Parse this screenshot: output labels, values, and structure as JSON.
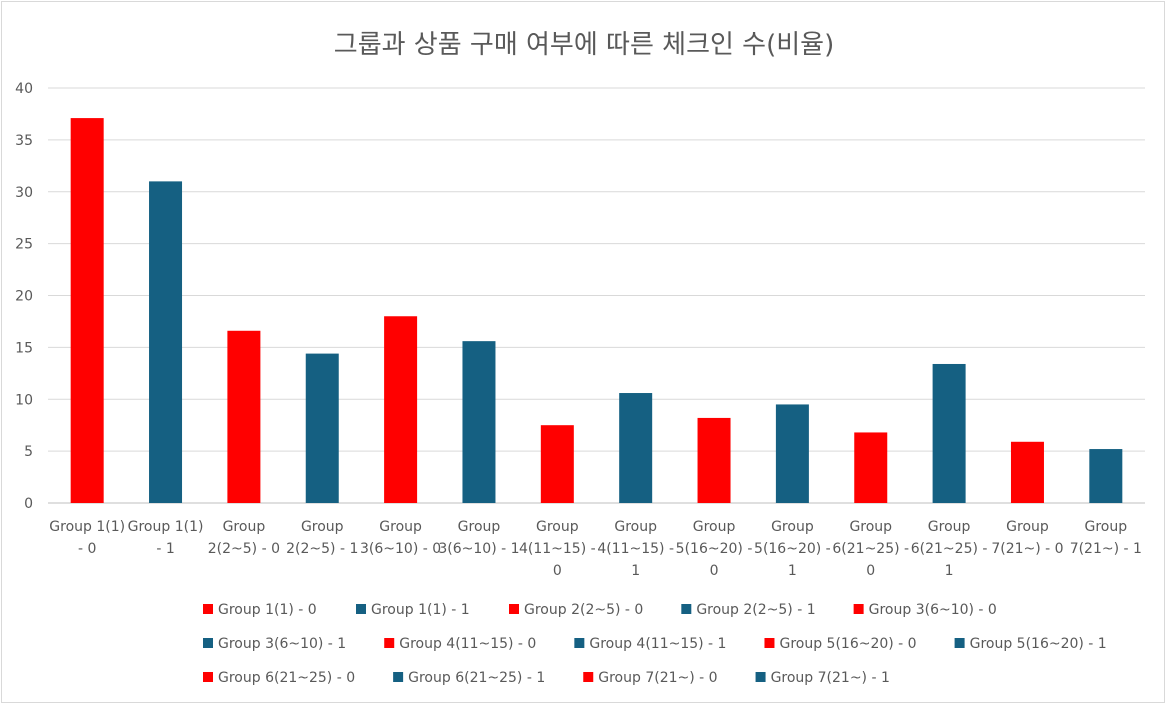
{
  "chart_data": {
    "type": "bar",
    "title": "그룹과 상품 구매 여부에 따른 체크인 수(비율)",
    "xlabel": "",
    "ylabel": "",
    "ylim": [
      0,
      40
    ],
    "yticks": [
      0,
      5,
      10,
      15,
      20,
      25,
      30,
      35,
      40
    ],
    "grid": true,
    "legend_position": "bottom",
    "colors": {
      "purchase_0": "#ff0000",
      "purchase_1": "#156082"
    },
    "categories": [
      "Group 1(1) - 0",
      "Group 1(1) - 1",
      "Group 2(2~5) - 0",
      "Group 2(2~5) - 1",
      "Group 3(6~10) - 0",
      "Group 3(6~10) - 1",
      "Group 4(11~15) - 0",
      "Group 4(11~15) - 1",
      "Group 5(16~20) - 0",
      "Group 5(16~20) - 1",
      "Group 6(21~25) - 0",
      "Group 6(21~25) - 1",
      "Group 7(21~) - 0",
      "Group 7(21~) - 1"
    ],
    "category_label_lines": [
      [
        "Group 1(1)",
        "- 0"
      ],
      [
        "Group 1(1)",
        "- 1"
      ],
      [
        "Group",
        "2(2~5) - 0"
      ],
      [
        "Group",
        "2(2~5) - 1"
      ],
      [
        "Group",
        "3(6~10) - 0"
      ],
      [
        "Group",
        "3(6~10) - 1"
      ],
      [
        "Group",
        "4(11~15) -",
        "0"
      ],
      [
        "Group",
        "4(11~15) -",
        "1"
      ],
      [
        "Group",
        "5(16~20) -",
        "0"
      ],
      [
        "Group",
        "5(16~20) -",
        "1"
      ],
      [
        "Group",
        "6(21~25) -",
        "0"
      ],
      [
        "Group",
        "6(21~25) -",
        "1"
      ],
      [
        "Group",
        "7(21~) - 0"
      ],
      [
        "Group",
        "7(21~) - 1"
      ]
    ],
    "values": [
      37.1,
      31.0,
      16.6,
      14.4,
      18.0,
      15.6,
      7.5,
      10.6,
      8.2,
      9.5,
      6.8,
      13.4,
      5.9,
      5.2
    ],
    "bar_colors": [
      "#ff0000",
      "#156082",
      "#ff0000",
      "#156082",
      "#ff0000",
      "#156082",
      "#ff0000",
      "#156082",
      "#ff0000",
      "#156082",
      "#ff0000",
      "#156082",
      "#ff0000",
      "#156082"
    ],
    "legend": [
      {
        "label": "Group 1(1) - 0",
        "color": "#ff0000"
      },
      {
        "label": "Group 1(1) - 1",
        "color": "#156082"
      },
      {
        "label": "Group 2(2~5) - 0",
        "color": "#ff0000"
      },
      {
        "label": "Group 2(2~5) - 1",
        "color": "#156082"
      },
      {
        "label": "Group 3(6~10) - 0",
        "color": "#ff0000"
      },
      {
        "label": "Group 3(6~10) - 1",
        "color": "#156082"
      },
      {
        "label": "Group 4(11~15) - 0",
        "color": "#ff0000"
      },
      {
        "label": "Group 4(11~15) - 1",
        "color": "#156082"
      },
      {
        "label": "Group 5(16~20) - 0",
        "color": "#ff0000"
      },
      {
        "label": "Group 5(16~20) - 1",
        "color": "#156082"
      },
      {
        "label": "Group 6(21~25) - 0",
        "color": "#ff0000"
      },
      {
        "label": "Group 6(21~25) - 1",
        "color": "#156082"
      },
      {
        "label": "Group 7(21~) - 0",
        "color": "#ff0000"
      },
      {
        "label": "Group 7(21~) - 1",
        "color": "#156082"
      }
    ]
  }
}
